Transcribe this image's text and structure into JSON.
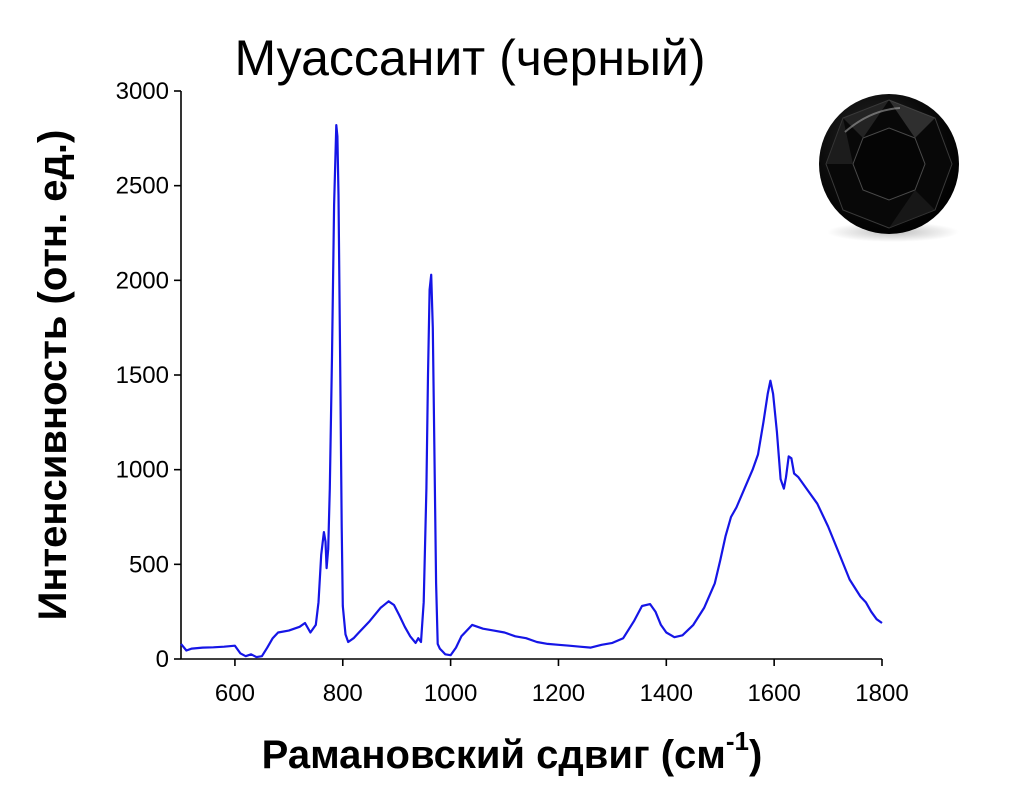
{
  "chart_data": {
    "type": "line",
    "title": "Муассанит (черный)",
    "xlabel_main": "Рамановский сдвиг (см",
    "xlabel_sup": "-1",
    "xlabel_close": ")",
    "ylabel": "Интенсивность (отн. ед.)",
    "xlim": [
      500,
      1800
    ],
    "ylim": [
      0,
      3000
    ],
    "xticks": [
      600,
      800,
      1000,
      1200,
      1400,
      1600,
      1800
    ],
    "yticks": [
      0,
      500,
      1000,
      1500,
      2000,
      2500,
      3000
    ],
    "line_color": "#1515e6",
    "gem_icon": "black-gemstone-icon",
    "series": [
      {
        "x": [
          500,
          510,
          520,
          540,
          560,
          580,
          600,
          610,
          620,
          630,
          640,
          650,
          660,
          670,
          680,
          700,
          720,
          730,
          740,
          750,
          755,
          760,
          765,
          768,
          770,
          773,
          776,
          780,
          784,
          788,
          790,
          792,
          795,
          798,
          800,
          805,
          810,
          820,
          830,
          850,
          870,
          885,
          895,
          905,
          915,
          925,
          935,
          940,
          945,
          950,
          955,
          958,
          961,
          964,
          967,
          970,
          973,
          976,
          980,
          985,
          990,
          1000,
          1010,
          1020,
          1040,
          1060,
          1080,
          1100,
          1120,
          1140,
          1160,
          1180,
          1200,
          1220,
          1240,
          1260,
          1280,
          1300,
          1320,
          1340,
          1355,
          1370,
          1380,
          1390,
          1400,
          1415,
          1430,
          1450,
          1470,
          1490,
          1500,
          1510,
          1520,
          1530,
          1545,
          1560,
          1570,
          1580,
          1588,
          1593,
          1598,
          1605,
          1612,
          1618,
          1622,
          1627,
          1632,
          1637,
          1645,
          1660,
          1680,
          1700,
          1720,
          1740,
          1760,
          1770,
          1780,
          1790,
          1800
        ],
        "y": [
          80,
          45,
          55,
          60,
          62,
          65,
          70,
          30,
          15,
          25,
          10,
          15,
          60,
          110,
          140,
          150,
          170,
          190,
          140,
          180,
          300,
          550,
          670,
          620,
          480,
          580,
          900,
          1600,
          2400,
          2820,
          2760,
          2450,
          1600,
          700,
          280,
          130,
          90,
          110,
          140,
          200,
          270,
          305,
          285,
          230,
          170,
          120,
          85,
          110,
          90,
          300,
          900,
          1500,
          1950,
          2030,
          1750,
          1100,
          400,
          80,
          55,
          40,
          25,
          20,
          60,
          120,
          180,
          160,
          150,
          140,
          120,
          110,
          90,
          80,
          75,
          70,
          65,
          60,
          75,
          85,
          110,
          200,
          280,
          290,
          250,
          180,
          140,
          115,
          125,
          180,
          270,
          400,
          520,
          650,
          750,
          800,
          900,
          1000,
          1080,
          1250,
          1400,
          1470,
          1400,
          1200,
          950,
          900,
          960,
          1070,
          1060,
          980,
          960,
          900,
          820,
          700,
          560,
          420,
          330,
          300,
          250,
          210,
          190
        ]
      }
    ]
  }
}
